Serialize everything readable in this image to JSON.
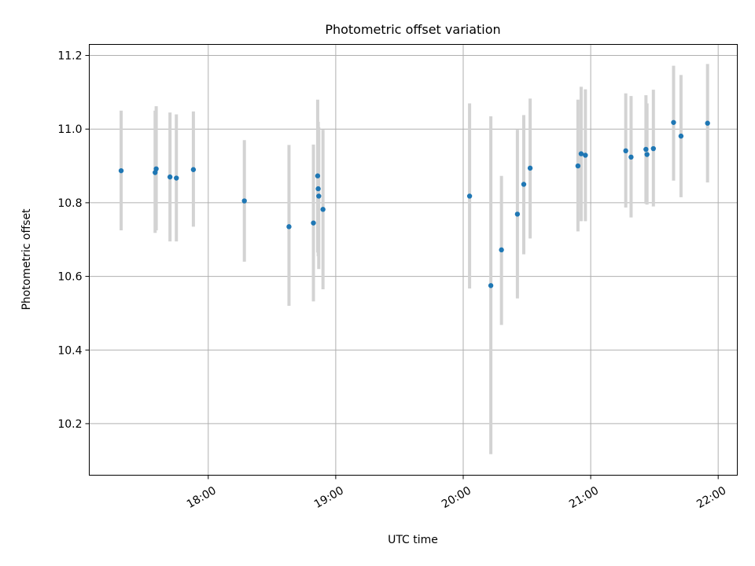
{
  "chart_data": {
    "type": "scatter",
    "title": "Photometric offset variation",
    "xlabel": "UTC time",
    "ylabel": "Photometric offset",
    "x_axis_type": "time",
    "xlim": [
      "17:04",
      "22:09"
    ],
    "ylim": [
      10.06,
      11.23
    ],
    "x_ticks": [
      "18:00",
      "19:00",
      "20:00",
      "21:00",
      "22:00"
    ],
    "y_ticks": [
      "10.2",
      "10.4",
      "10.6",
      "10.8",
      "11.0",
      "11.2"
    ],
    "grid": true,
    "errorbar_color": "#d3d3d3",
    "point_color": "#1f77b4",
    "points": [
      {
        "x": "17:19:00",
        "y": 10.887,
        "err_low": 10.725,
        "err_high": 11.05
      },
      {
        "x": "17:35:00",
        "y": 10.882,
        "err_low": 10.718,
        "err_high": 11.05
      },
      {
        "x": "17:35:30",
        "y": 10.892,
        "err_low": 10.725,
        "err_high": 11.062
      },
      {
        "x": "17:42:00",
        "y": 10.87,
        "err_low": 10.695,
        "err_high": 11.045
      },
      {
        "x": "17:45:00",
        "y": 10.867,
        "err_low": 10.695,
        "err_high": 11.04
      },
      {
        "x": "17:53:00",
        "y": 10.89,
        "err_low": 10.735,
        "err_high": 11.048
      },
      {
        "x": "18:17:00",
        "y": 10.805,
        "err_low": 10.64,
        "err_high": 10.97
      },
      {
        "x": "18:38:00",
        "y": 10.735,
        "err_low": 10.52,
        "err_high": 10.957
      },
      {
        "x": "18:49:30",
        "y": 10.745,
        "err_low": 10.532,
        "err_high": 10.958
      },
      {
        "x": "18:51:30",
        "y": 10.873,
        "err_low": 10.665,
        "err_high": 11.08
      },
      {
        "x": "18:51:45",
        "y": 10.838,
        "err_low": 10.655,
        "err_high": 11.02
      },
      {
        "x": "18:52:00",
        "y": 10.818,
        "err_low": 10.62,
        "err_high": 11.005
      },
      {
        "x": "18:54:00",
        "y": 10.782,
        "err_low": 10.565,
        "err_high": 10.998
      },
      {
        "x": "20:03:00",
        "y": 10.818,
        "err_low": 10.567,
        "err_high": 11.07
      },
      {
        "x": "20:13:00",
        "y": 10.575,
        "err_low": 10.117,
        "err_high": 11.035
      },
      {
        "x": "20:18:00",
        "y": 10.672,
        "err_low": 10.468,
        "err_high": 10.873
      },
      {
        "x": "20:25:30",
        "y": 10.769,
        "err_low": 10.54,
        "err_high": 10.998
      },
      {
        "x": "20:28:30",
        "y": 10.85,
        "err_low": 10.66,
        "err_high": 11.038
      },
      {
        "x": "20:31:30",
        "y": 10.894,
        "err_low": 10.703,
        "err_high": 11.083
      },
      {
        "x": "20:54:00",
        "y": 10.9,
        "err_low": 10.722,
        "err_high": 11.08
      },
      {
        "x": "20:55:30",
        "y": 10.933,
        "err_low": 10.75,
        "err_high": 11.115
      },
      {
        "x": "20:57:30",
        "y": 10.929,
        "err_low": 10.75,
        "err_high": 11.108
      },
      {
        "x": "21:16:30",
        "y": 10.941,
        "err_low": 10.787,
        "err_high": 11.097
      },
      {
        "x": "21:19:00",
        "y": 10.924,
        "err_low": 10.76,
        "err_high": 11.09
      },
      {
        "x": "21:26:00",
        "y": 10.945,
        "err_low": 10.797,
        "err_high": 11.092
      },
      {
        "x": "21:26:30",
        "y": 10.931,
        "err_low": 10.795,
        "err_high": 11.07
      },
      {
        "x": "21:29:30",
        "y": 10.947,
        "err_low": 10.79,
        "err_high": 11.107
      },
      {
        "x": "21:39:00",
        "y": 11.018,
        "err_low": 10.86,
        "err_high": 11.172
      },
      {
        "x": "21:42:30",
        "y": 10.981,
        "err_low": 10.815,
        "err_high": 11.147
      },
      {
        "x": "21:55:00",
        "y": 11.016,
        "err_low": 10.855,
        "err_high": 11.177
      }
    ]
  }
}
